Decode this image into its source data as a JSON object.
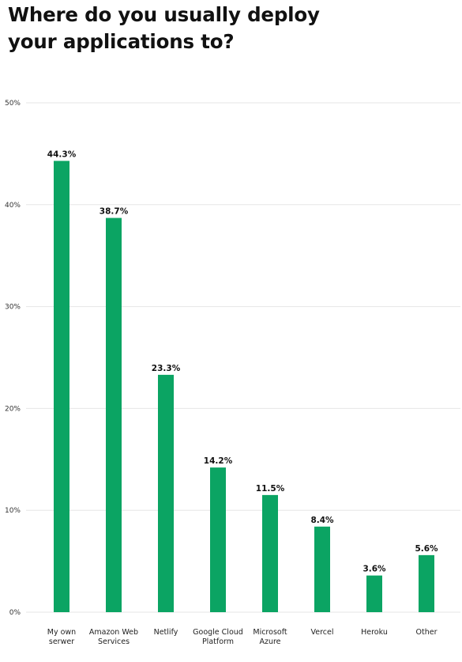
{
  "title_line1": "Where do you usually deploy",
  "title_line2": "your applications to?",
  "chart_data": {
    "type": "bar",
    "title": "Where do you usually deploy your applications to?",
    "categories": [
      [
        "My own",
        "serwer"
      ],
      [
        "Amazon Web",
        "Services"
      ],
      [
        "Netlify"
      ],
      [
        "Google Cloud",
        "Platform"
      ],
      [
        "Microsoft",
        "Azure"
      ],
      [
        "Vercel"
      ],
      [
        "Heroku"
      ],
      [
        "Other"
      ]
    ],
    "values": [
      44.3,
      38.7,
      23.3,
      14.2,
      11.5,
      8.4,
      3.6,
      5.6
    ],
    "value_labels": [
      "44.3%",
      "38.7%",
      "23.3%",
      "14.2%",
      "11.5%",
      "8.4%",
      "3.6%",
      "5.6%"
    ],
    "ylim": [
      0,
      50
    ],
    "yticks": [
      0,
      10,
      20,
      30,
      40,
      50
    ],
    "ytick_labels": [
      "0%",
      "10%",
      "20%",
      "30%",
      "40%",
      "50%"
    ],
    "xlabel": "",
    "ylabel": "",
    "grid": true,
    "legend": "none",
    "bar_color": "#0ba463"
  }
}
